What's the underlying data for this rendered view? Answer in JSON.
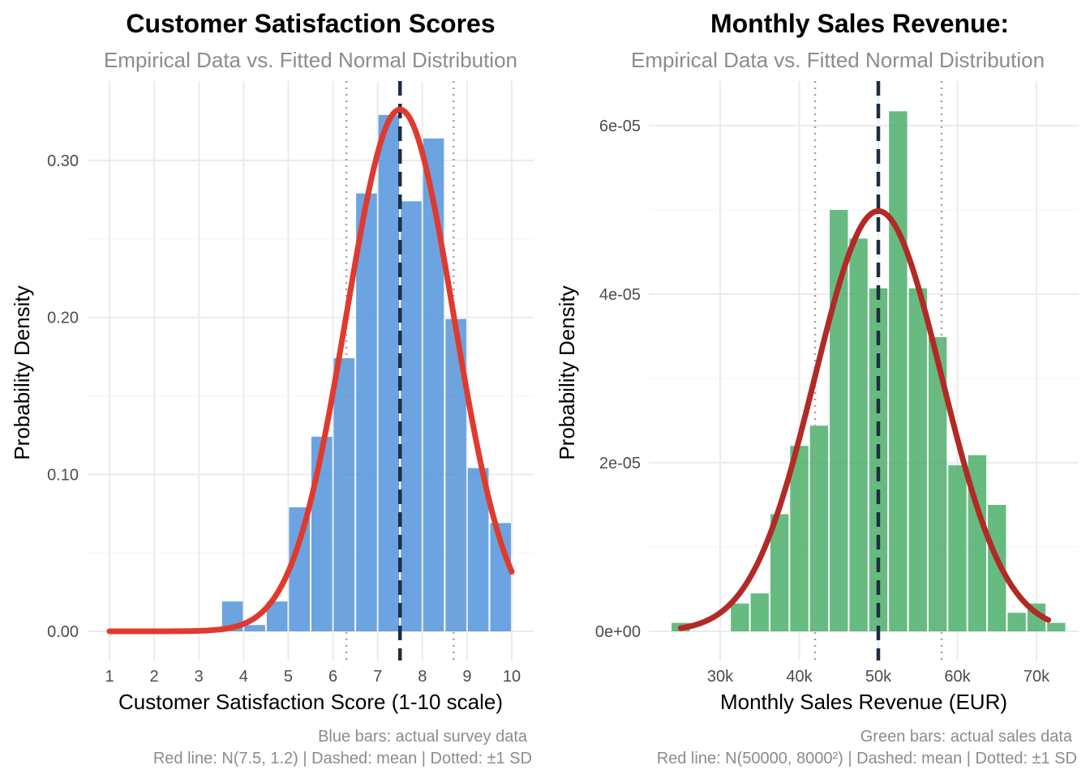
{
  "chart_data": [
    {
      "type": "bar",
      "title": "Customer Satisfaction Scores",
      "subtitle": "Empirical Data vs. Fitted Normal Distribution",
      "xlabel": "Customer Satisfaction Score (1-10 scale)",
      "ylabel": "Probability Density",
      "xlim": [
        1,
        10
      ],
      "ylim": [
        0,
        0.33
      ],
      "x_ticks": [
        1,
        2,
        3,
        4,
        5,
        6,
        7,
        8,
        9,
        10
      ],
      "x_tick_labels": [
        "1",
        "2",
        "3",
        "4",
        "5",
        "6",
        "7",
        "8",
        "9",
        "10"
      ],
      "y_ticks": [
        0,
        0.1,
        0.2,
        0.3
      ],
      "y_tick_labels": [
        "0.00",
        "0.10",
        "0.20",
        "0.30"
      ],
      "grid": true,
      "bin_width": 0.5,
      "bar_color": "#4a90d9",
      "bins": [
        {
          "x0": 3.5,
          "x1": 4.0,
          "density": 0.019
        },
        {
          "x0": 4.0,
          "x1": 4.5,
          "density": 0.004
        },
        {
          "x0": 4.5,
          "x1": 5.0,
          "density": 0.019
        },
        {
          "x0": 5.0,
          "x1": 5.5,
          "density": 0.079
        },
        {
          "x0": 5.5,
          "x1": 6.0,
          "density": 0.124
        },
        {
          "x0": 6.0,
          "x1": 6.5,
          "density": 0.174
        },
        {
          "x0": 6.5,
          "x1": 7.0,
          "density": 0.279
        },
        {
          "x0": 7.0,
          "x1": 7.5,
          "density": 0.329
        },
        {
          "x0": 7.5,
          "x1": 8.0,
          "density": 0.274
        },
        {
          "x0": 8.0,
          "x1": 8.5,
          "density": 0.314
        },
        {
          "x0": 8.5,
          "x1": 9.0,
          "density": 0.199
        },
        {
          "x0": 9.0,
          "x1": 9.5,
          "density": 0.104
        },
        {
          "x0": 9.5,
          "x1": 10.0,
          "density": 0.069
        }
      ],
      "normal_fit": {
        "mean": 7.5,
        "sd": 1.2,
        "color": "#e03a2f",
        "x_range": [
          1,
          10
        ]
      },
      "mean_line": {
        "x": 7.5,
        "color": "#1e2d40",
        "style": "dashed"
      },
      "sd_lines": {
        "x": [
          6.3,
          8.7
        ],
        "color": "#a0a0a0",
        "style": "dotted"
      },
      "caption": [
        "Blue bars: actual survey data",
        "Red line: N(7.5, 1.2) | Dashed: mean | Dotted: ±1 SD"
      ]
    },
    {
      "type": "bar",
      "title": "Monthly Sales Revenue:",
      "subtitle": "Empirical Data vs. Fitted Normal Distribution",
      "xlabel": "Monthly Sales Revenue (EUR)",
      "ylabel": "Probability Density",
      "xlim": [
        25000,
        72500
      ],
      "ylim": [
        0,
        6.2e-05
      ],
      "x_ticks": [
        30000,
        40000,
        50000,
        60000,
        70000
      ],
      "x_tick_labels": [
        "30k",
        "40k",
        "50k",
        "60k",
        "70k"
      ],
      "y_ticks": [
        0,
        2e-05,
        4e-05,
        6e-05
      ],
      "y_tick_labels": [
        "0e+00",
        "2e-05",
        "4e-05",
        "6e-05"
      ],
      "grid": true,
      "bin_width": 2500,
      "bar_color": "#4caf6a",
      "bins": [
        {
          "x0": 23750,
          "x1": 26250,
          "density": 1e-06
        },
        {
          "x0": 31250,
          "x1": 33750,
          "density": 3.3e-06
        },
        {
          "x0": 33750,
          "x1": 36250,
          "density": 4.5e-06
        },
        {
          "x0": 36250,
          "x1": 38750,
          "density": 1.39e-05
        },
        {
          "x0": 38750,
          "x1": 41250,
          "density": 2.2e-05
        },
        {
          "x0": 41250,
          "x1": 43750,
          "density": 2.44e-05
        },
        {
          "x0": 43750,
          "x1": 46250,
          "density": 5e-05
        },
        {
          "x0": 46250,
          "x1": 48750,
          "density": 4.66e-05
        },
        {
          "x0": 48750,
          "x1": 51250,
          "density": 4.07e-05
        },
        {
          "x0": 51250,
          "x1": 53750,
          "density": 6.17e-05
        },
        {
          "x0": 53750,
          "x1": 56250,
          "density": 4.07e-05
        },
        {
          "x0": 56250,
          "x1": 58750,
          "density": 3.49e-05
        },
        {
          "x0": 58750,
          "x1": 61250,
          "density": 1.97e-05
        },
        {
          "x0": 61250,
          "x1": 63750,
          "density": 2.09e-05
        },
        {
          "x0": 63750,
          "x1": 66250,
          "density": 1.5e-05
        },
        {
          "x0": 66250,
          "x1": 68750,
          "density": 2.2e-06
        },
        {
          "x0": 68750,
          "x1": 71250,
          "density": 3.3e-06
        },
        {
          "x0": 71250,
          "x1": 73750,
          "density": 1e-06
        }
      ],
      "normal_fit": {
        "mean": 50000,
        "sd": 8000,
        "color": "#b22a25",
        "x_range": [
          25000,
          71500
        ]
      },
      "mean_line": {
        "x": 50000,
        "color": "#1e2d40",
        "style": "dashed"
      },
      "sd_lines": {
        "x": [
          42000,
          58000
        ],
        "color": "#a0a0a0",
        "style": "dotted"
      },
      "caption": [
        "Green bars: actual sales data",
        "Red line: N(50000, 8000²) | Dashed: mean | Dotted: ±1 SD"
      ]
    }
  ]
}
